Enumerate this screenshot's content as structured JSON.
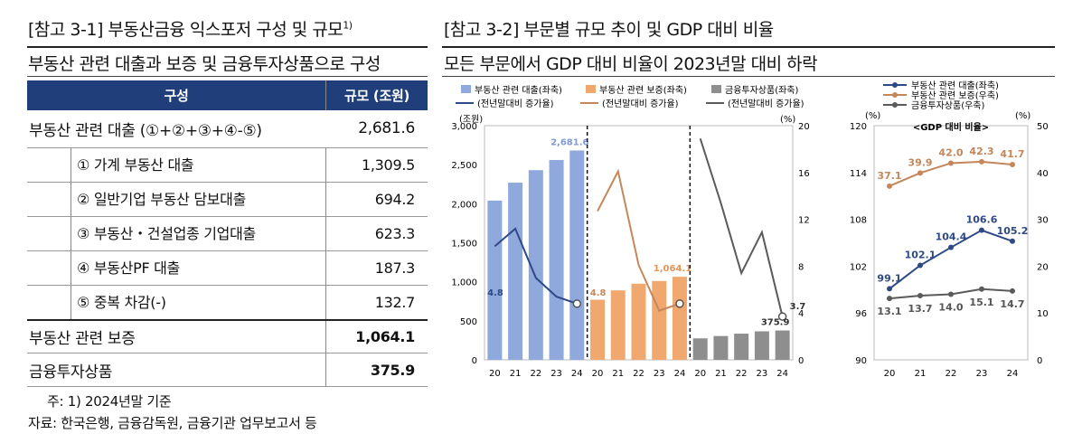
{
  "left": {
    "title": "[참고 3-1] 부동산금융 익스포저 구성 및 규모",
    "title_sup": "1)",
    "subtitle": "부동산 관련 대출과 보증 및 금융투자상품으로 구성",
    "table": {
      "headers": [
        "구성",
        "규모 (조원)"
      ],
      "rows": [
        {
          "label": "부동산 관련 대출 (①+②+③+④-⑤)",
          "value": "2,681.6"
        },
        {
          "label": "① 가계 부동산 대출",
          "value": "1,309.5"
        },
        {
          "label": "② 일반기업 부동산 담보대출",
          "value": "694.2"
        },
        {
          "label": "③ 부동산・건설업종 기업대출",
          "value": "623.3"
        },
        {
          "label": "④ 부동산PF 대출",
          "value": "187.3"
        },
        {
          "label": "⑤ 중복 차감(-)",
          "value": "132.7"
        },
        {
          "label": "부동산 관련 보증",
          "value": "1,064.1"
        },
        {
          "label": "금융투자상품",
          "value": "375.9"
        }
      ]
    },
    "note1": "주: 1) 2024년말 기준",
    "note2": "자료: 한국은행, 금융감독원, 금융기관 업무보고서 등"
  },
  "right": {
    "title": "[참고 3-2] 부문별 규모 추이 및 GDP 대비 비율",
    "subtitle": "모든 부문에서 GDP 대비 비율이 2023년말 대비 하락"
  },
  "colors": {
    "loan_bar": "#8fa9dc",
    "loan_line": "#2e4a86",
    "guar_bar": "#f0a86e",
    "guar_line": "#c5865a",
    "fin_bar": "#8e8e8e",
    "fin_line": "#5a5a5a",
    "table_header": "#203f7a"
  },
  "chart_data": [
    {
      "type": "bar",
      "legend": [
        "부동산 관련 대출(좌축)",
        "부동산 관련 보증(좌축)",
        "금융투자상품(좌축)",
        "(전년말대비 증가율)",
        "(전년말대비 증가율)",
        "(전년말대비 증가율)"
      ],
      "left_unit": "(조원)",
      "right_unit": "(%)",
      "ylim": [
        0,
        3000
      ],
      "yticks": [
        "0",
        "500",
        "1,000",
        "1,500",
        "2,000",
        "2,500",
        "3,000"
      ],
      "y2lim": [
        0,
        20
      ],
      "y2ticks": [
        "0",
        "4",
        "8",
        "12",
        "16",
        "20"
      ],
      "categories": [
        "20",
        "21",
        "22",
        "23",
        "24"
      ],
      "series": [
        {
          "name": "부동산 관련 대출(좌축)",
          "values": [
            2040,
            2270,
            2430,
            2560,
            2681.6
          ],
          "growth": [
            9.7,
            11.2,
            7.0,
            5.4,
            4.8
          ],
          "label": "2,681.6",
          "growth_label": "4.8"
        },
        {
          "name": "부동산 관련 보증(좌축)",
          "values": [
            770,
            890,
            975,
            1010,
            1064.1
          ],
          "growth": [
            12.7,
            16.1,
            8.1,
            4.2,
            4.8
          ],
          "label": "1,064.1",
          "growth_label": "4.8"
        },
        {
          "name": "금융투자상품(좌축)",
          "values": [
            275,
            305,
            335,
            365,
            375.9
          ],
          "growth": [
            18.9,
            13.4,
            7.4,
            10.9,
            3.7
          ],
          "label": "375.9",
          "growth_label": "3.7"
        }
      ]
    },
    {
      "type": "line",
      "title": "<GDP 대비 비율>",
      "left_unit": "(%)",
      "right_unit": "(%)",
      "ylim": [
        90,
        120
      ],
      "yticks": [
        "90",
        "96",
        "102",
        "108",
        "114",
        "120"
      ],
      "y2lim": [
        0,
        50
      ],
      "y2ticks": [
        "0",
        "10",
        "20",
        "30",
        "40",
        "50"
      ],
      "categories": [
        "20",
        "21",
        "22",
        "23",
        "24"
      ],
      "series": [
        {
          "name": "부동산 관련 대출(좌축)",
          "axis": "left",
          "values": [
            99.1,
            102.1,
            104.4,
            106.6,
            105.2
          ],
          "labels": [
            "99.1",
            "102.1",
            "104.4",
            "106.6",
            "105.2"
          ]
        },
        {
          "name": "부동산 관련 보증(우축)",
          "axis": "right",
          "values": [
            37.1,
            39.9,
            42.0,
            42.3,
            41.7
          ],
          "labels": [
            "37.1",
            "39.9",
            "42.0",
            "42.3",
            "41.7"
          ]
        },
        {
          "name": "금융투자상품(우축)",
          "axis": "right",
          "values": [
            13.1,
            13.7,
            14.0,
            15.1,
            14.7
          ],
          "labels": [
            "13.1",
            "13.7",
            "14.0",
            "15.1",
            "14.7"
          ]
        }
      ]
    }
  ]
}
